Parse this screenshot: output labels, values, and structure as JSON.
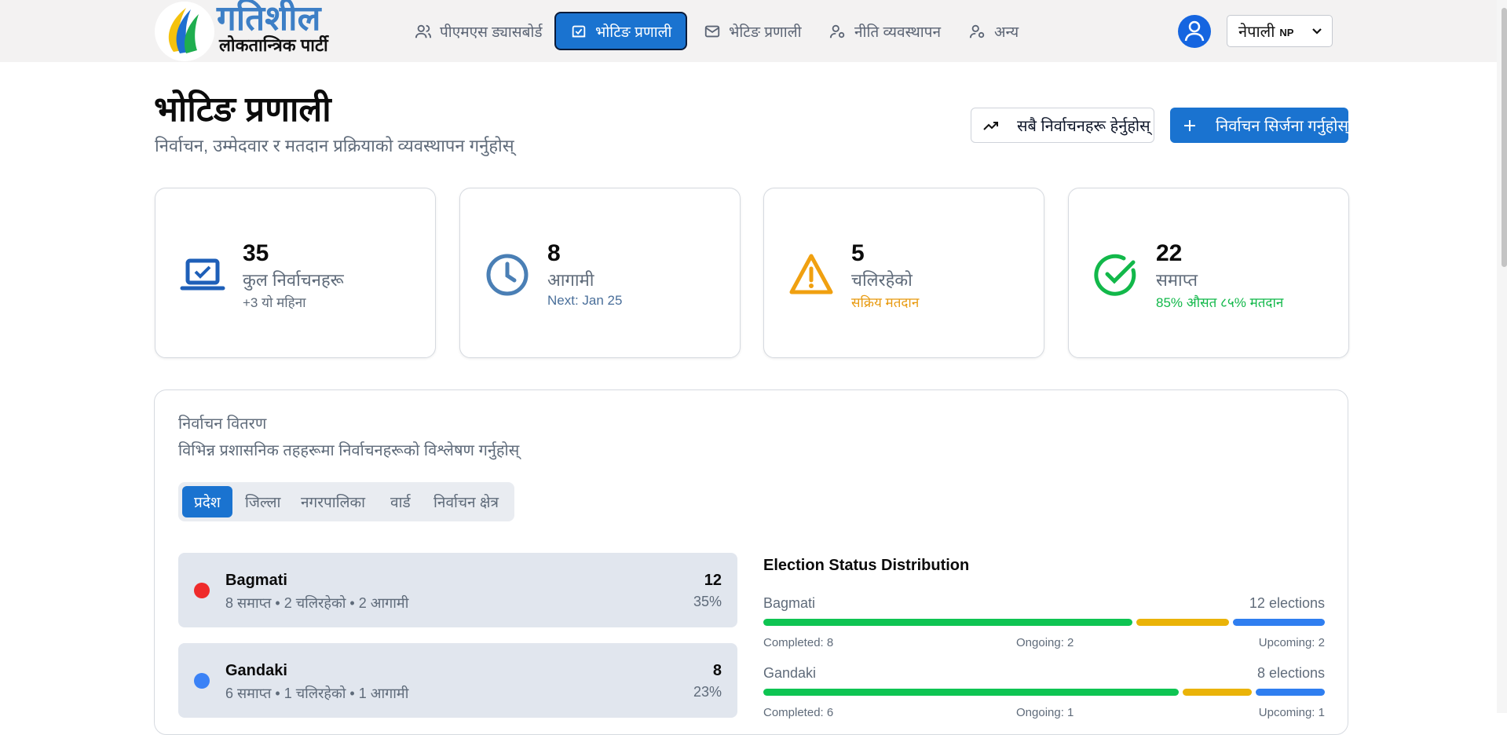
{
  "header": {
    "brand_title": "गतिशील",
    "brand_subtitle": "लोकतान्त्रिक पार्टी",
    "nav": [
      {
        "label": "पीएमएस ड्यासबोर्ड",
        "icon": "users-icon"
      },
      {
        "label": "भोटिङ प्रणाली",
        "icon": "vote-box-icon",
        "active": true
      },
      {
        "label": "भेटिङ प्रणाली",
        "icon": "mail-icon"
      },
      {
        "label": "नीति व्यवस्थापन",
        "icon": "user-settings-icon"
      },
      {
        "label": "अन्य",
        "icon": "user-settings-icon"
      }
    ],
    "language": {
      "label": "नेपाली",
      "code": "NP"
    }
  },
  "page": {
    "title": "भोटिङ प्रणाली",
    "subtitle": "निर्वाचन, उम्मेदवार र मतदान प्रक्रियाको व्यवस्थापन गर्नुहोस्",
    "view_all_label": "सबै निर्वाचनहरू हेर्नुहोस्",
    "create_label": "निर्वाचन सिर्जना गर्नुहोस्"
  },
  "stats": [
    {
      "value": "35",
      "label": "कुल निर्वाचनहरू",
      "note": "+3 यो महिना",
      "icon": "laptop-check-icon",
      "color": "#1e5fb8",
      "note_color": "#5f6b7a"
    },
    {
      "value": "8",
      "label": "आगामी",
      "note": "Next: Jan 25",
      "icon": "clock-icon",
      "color": "#4a7fb5",
      "note_color": "#4a6f9a"
    },
    {
      "value": "5",
      "label": "चलिरहेको",
      "note": "सक्रिय मतदान",
      "icon": "warning-icon",
      "color": "#f0a010",
      "note_color": "#e89a10"
    },
    {
      "value": "22",
      "label": "समाप्त",
      "note": "85% औसत ८५% मतदान",
      "icon": "check-circle-icon",
      "color": "#12b84a",
      "note_color": "#12b84a"
    }
  ],
  "distribution": {
    "title": "निर्वाचन वितरण",
    "subtitle": "विभिन्न प्रशासनिक तहहरूमा निर्वाचनहरूको विश्लेषण गर्नुहोस्",
    "tabs": [
      "प्रदेश",
      "जिल्ला",
      "नगरपालिका",
      "वार्ड",
      "निर्वाचन क्षेत्र"
    ],
    "active_tab": 0,
    "regions": [
      {
        "name": "Bagmati",
        "stats": "8 समाप्त • 2 चलिरहेको • 2 आगामी",
        "count": "12",
        "percent": "35%",
        "dot_color": "#ef2b2b"
      },
      {
        "name": "Gandaki",
        "stats": "6 समाप्त • 1 चलिरहेको • 1 आगामी",
        "count": "8",
        "percent": "23%",
        "dot_color": "#3b82f6"
      }
    ],
    "status_title": "Election Status Distribution",
    "status_rows": [
      {
        "name": "Bagmati",
        "count_label": "12 elections",
        "completed": 8,
        "ongoing": 2,
        "upcoming": 2,
        "completed_label": "Completed: 8",
        "ongoing_label": "Ongoing: 2",
        "upcoming_label": "Upcoming: 2"
      },
      {
        "name": "Gandaki",
        "count_label": "8 elections",
        "completed": 6,
        "ongoing": 1,
        "upcoming": 1,
        "completed_label": "Completed: 6",
        "ongoing_label": "Ongoing: 1",
        "upcoming_label": "Upcoming: 1"
      }
    ],
    "colors": {
      "completed": "#0ec452",
      "ongoing": "#eab308",
      "upcoming": "#2f7ef0"
    }
  }
}
